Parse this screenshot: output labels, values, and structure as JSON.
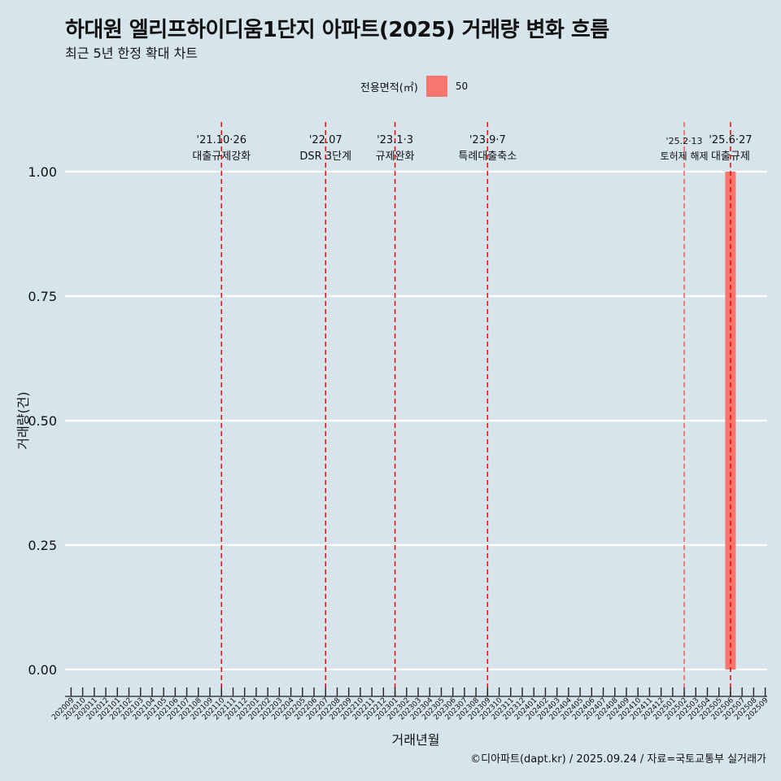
{
  "chart_data": {
    "type": "bar",
    "title": "하대원 엘리프하이디움1단지 아파트(2025) 거래량 변화 흐름",
    "subtitle": "최근 5년 한정 확대 차트",
    "xlabel": "거래년월",
    "ylabel": "거래량(건)",
    "caption": "©디아파트(dapt.kr) / 2025.09.24 / 자료=국토교통부 실거래가",
    "legend": {
      "title": "전용면적(㎡)",
      "position": "top",
      "entries": [
        {
          "label": "50",
          "color": "#f8766d"
        }
      ]
    },
    "ylim": [
      0,
      1
    ],
    "yticks": [
      "0.00",
      "0.25",
      "0.50",
      "0.75",
      "1.00"
    ],
    "ytick_values": [
      0,
      0.25,
      0.5,
      0.75,
      1
    ],
    "categories": [
      "202009",
      "202010",
      "202011",
      "202012",
      "202101",
      "202102",
      "202103",
      "202104",
      "202105",
      "202106",
      "202107",
      "202108",
      "202109",
      "202110",
      "202111",
      "202112",
      "202201",
      "202202",
      "202203",
      "202204",
      "202205",
      "202206",
      "202207",
      "202208",
      "202209",
      "202210",
      "202211",
      "202212",
      "202301",
      "202302",
      "202303",
      "202304",
      "202305",
      "202306",
      "202307",
      "202308",
      "202309",
      "202310",
      "202311",
      "202312",
      "202401",
      "202402",
      "202403",
      "202404",
      "202405",
      "202406",
      "202407",
      "202408",
      "202409",
      "202410",
      "202411",
      "202412",
      "202501",
      "202502",
      "202503",
      "202504",
      "202505",
      "202506",
      "202507",
      "202508",
      "202509"
    ],
    "series": [
      {
        "name": "50",
        "color": "#f8766d",
        "points": [
          {
            "x": "202506",
            "y": 1
          }
        ]
      }
    ],
    "grid": true,
    "annotations": [
      {
        "x": "202110",
        "line1": "'21.10·26",
        "line2": "대출규제강화",
        "color": "#ff0000",
        "style": "dashed"
      },
      {
        "x": "202207",
        "line1": "'22.07",
        "line2": "DSR 3단계",
        "color": "#ff0000",
        "style": "dashed"
      },
      {
        "x": "202301",
        "line1": "'23.1·3",
        "line2": "규제완화",
        "color": "#ff0000",
        "style": "dashed"
      },
      {
        "x": "202309",
        "line1": "'23.9·7",
        "line2": "특례대출축소",
        "color": "#ff0000",
        "style": "dashed"
      },
      {
        "x": "202502",
        "line1": "'25.2·13",
        "line2": "토허제 해제",
        "color": "#ff5555",
        "style": "dashed"
      },
      {
        "x": "202506",
        "line1": "'25.6·27",
        "line2": "대출규제",
        "color": "#ff0000",
        "style": "dashed"
      }
    ]
  }
}
